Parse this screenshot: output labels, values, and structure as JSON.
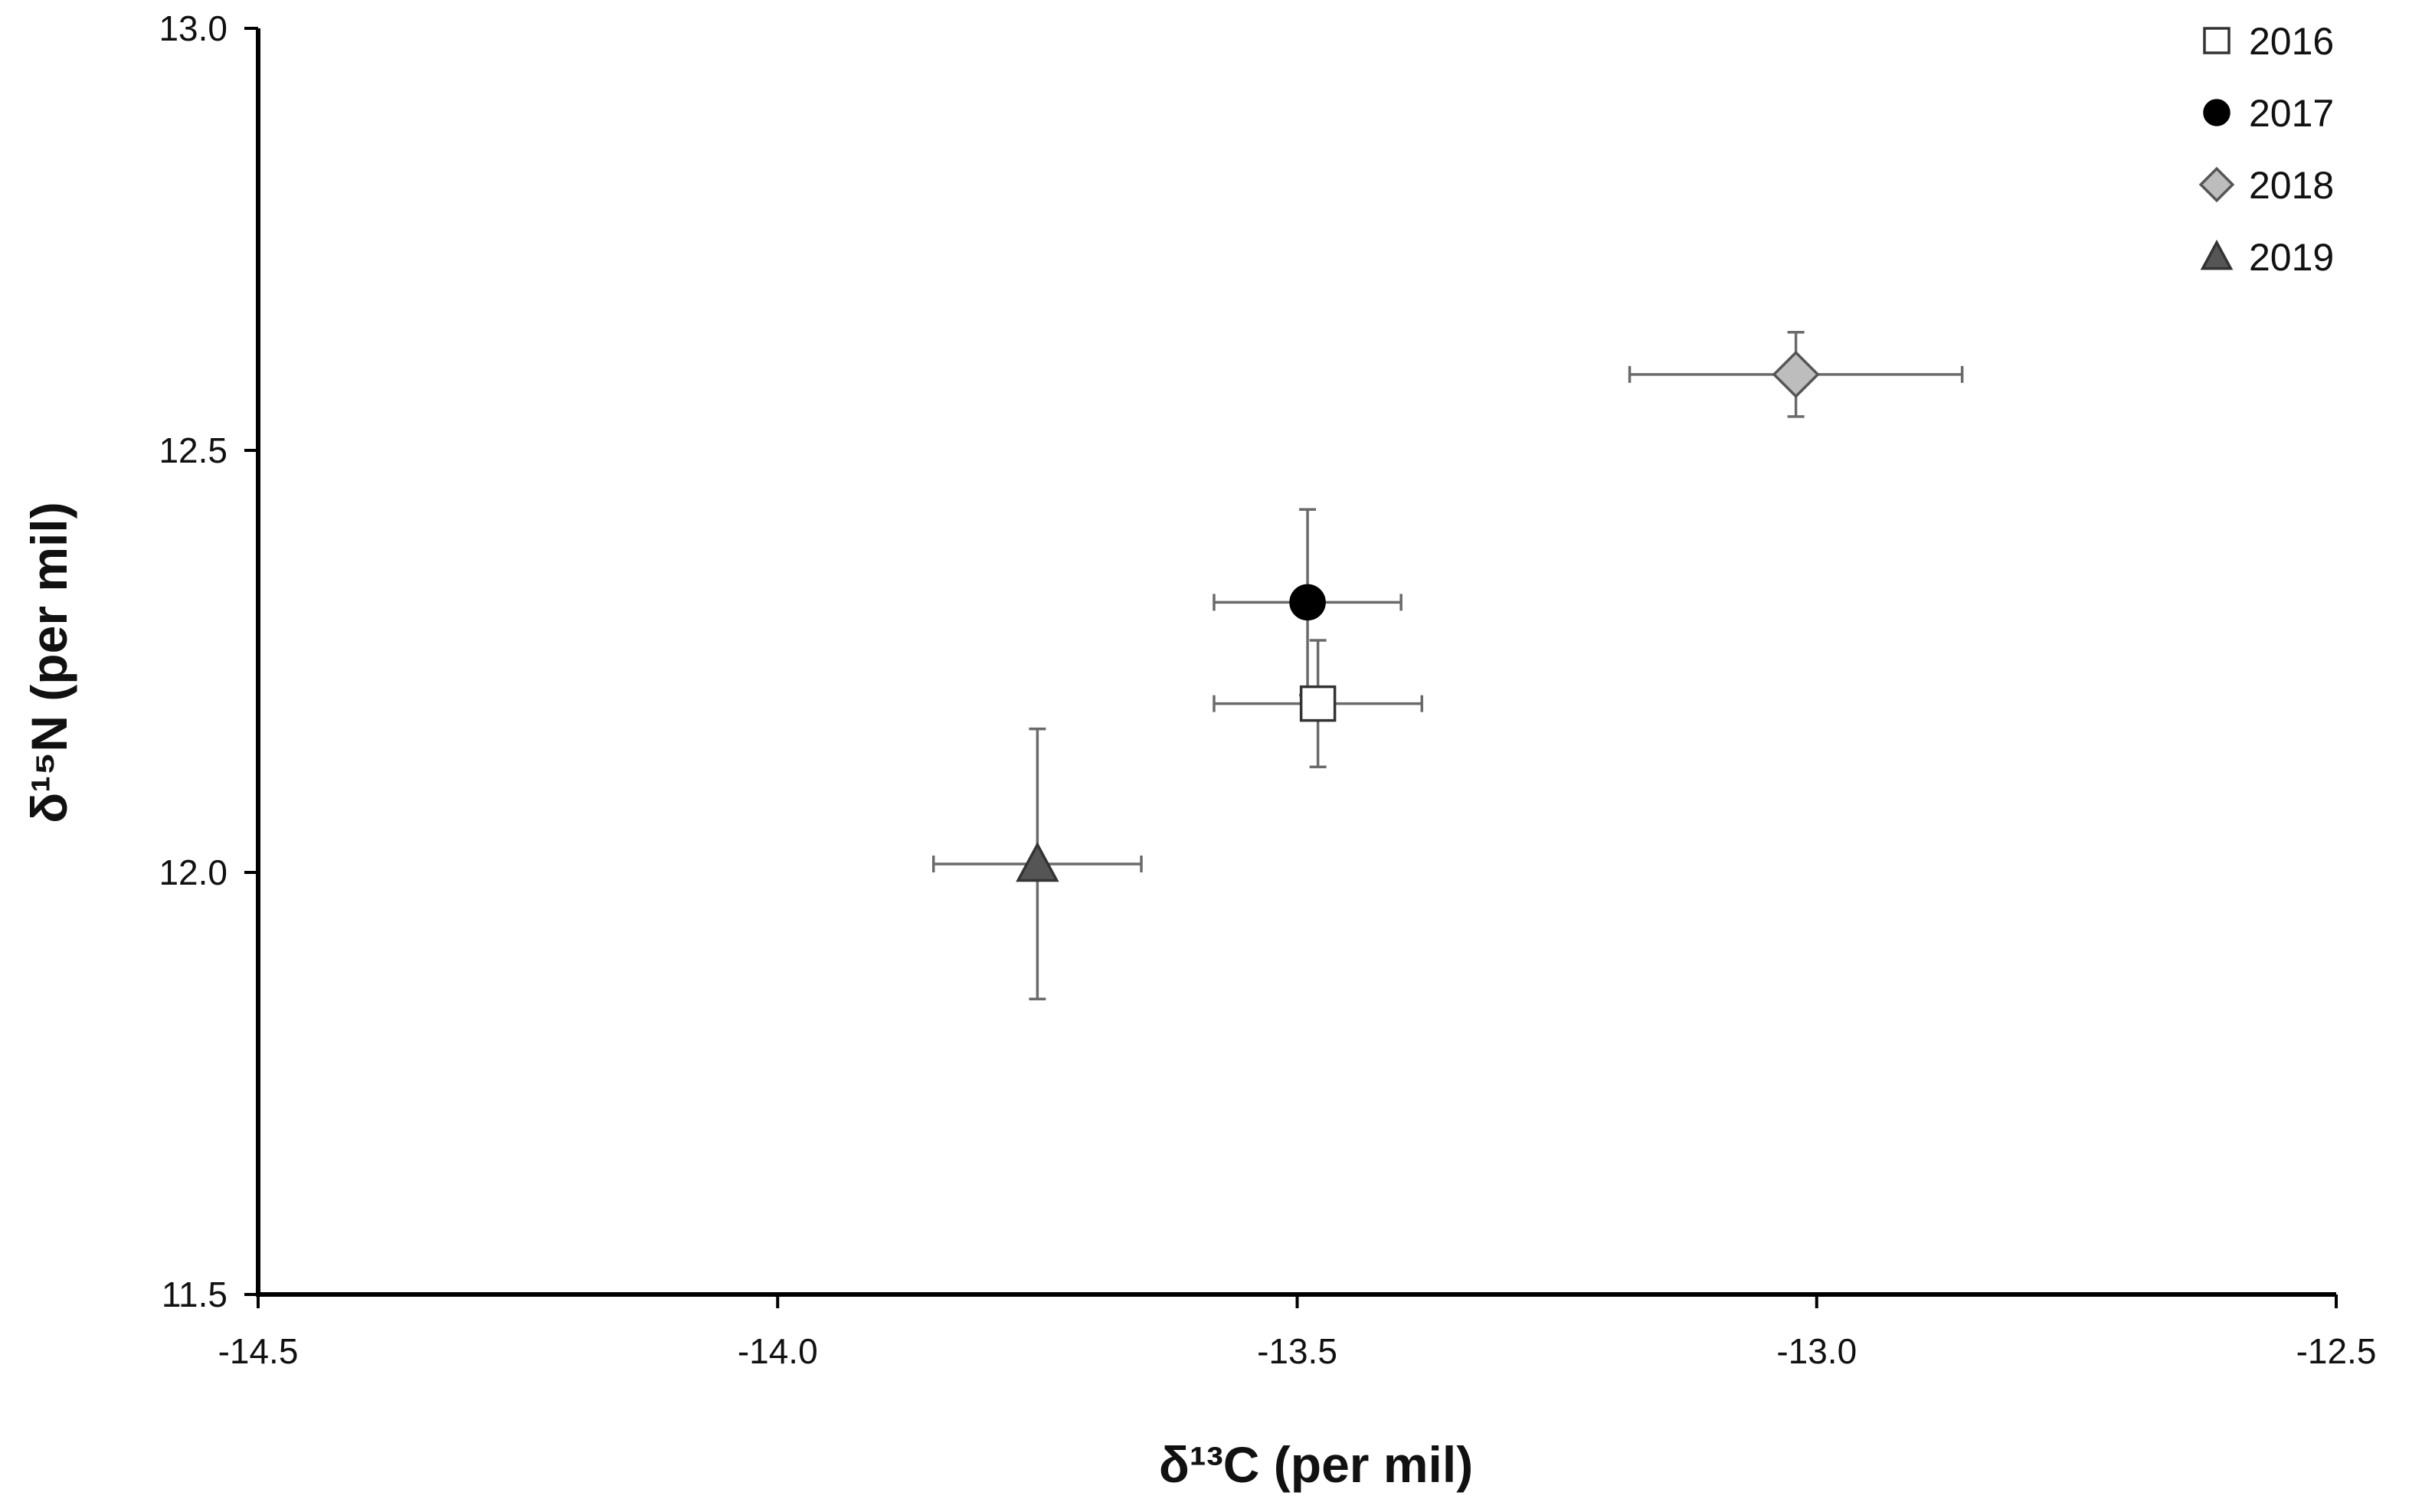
{
  "chart_data": {
    "type": "scatter",
    "title": "",
    "xlabel": "δ¹³C (per mil)",
    "ylabel": "δ¹⁵N (per mil)",
    "xlim": [
      -14.5,
      -12.5
    ],
    "ylim": [
      11.5,
      13.0
    ],
    "x_ticks": [
      -14.5,
      -14.0,
      -13.5,
      -13.0,
      -12.5
    ],
    "x_tick_labels": [
      "-14.5",
      "-14.0",
      "-13.5",
      "-13.0",
      "-12.5"
    ],
    "y_ticks": [
      11.5,
      12.0,
      12.5,
      13.0
    ],
    "y_tick_labels": [
      "11.5",
      "12.0",
      "12.5",
      "13.0"
    ],
    "grid": false,
    "legend_position": "top-right",
    "series": [
      {
        "name": "2016",
        "marker": "square",
        "fill": "#ffffff",
        "stroke": "#333333",
        "x": -13.48,
        "y": 12.2,
        "x_err": 0.1,
        "y_err": 0.075
      },
      {
        "name": "2017",
        "marker": "circle",
        "fill": "#000000",
        "stroke": "#000000",
        "x": -13.49,
        "y": 12.32,
        "x_err": 0.09,
        "y_err": 0.11
      },
      {
        "name": "2018",
        "marker": "diamond",
        "fill": "#bdbdbd",
        "stroke": "#555555",
        "x": -13.02,
        "y": 12.59,
        "x_err": 0.16,
        "y_err": 0.05
      },
      {
        "name": "2019",
        "marker": "triangle",
        "fill": "#555555",
        "stroke": "#333333",
        "x": -13.75,
        "y": 12.01,
        "x_err": 0.1,
        "y_err": 0.16
      }
    ]
  }
}
